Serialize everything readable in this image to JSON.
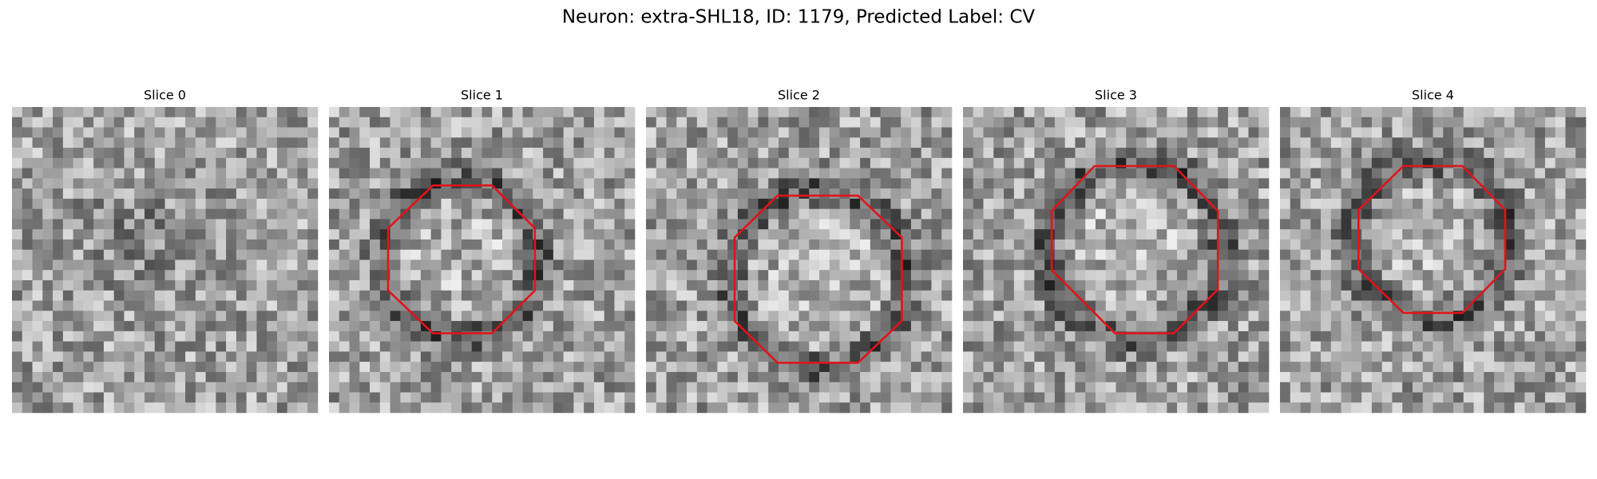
{
  "header": {
    "title": "Neuron: extra-SHL18, ID: 1179, Predicted Label: CV"
  },
  "panels": [
    {
      "title": "Slice 0"
    },
    {
      "title": "Slice 1"
    },
    {
      "title": "Slice 2"
    },
    {
      "title": "Slice 3"
    },
    {
      "title": "Slice 4"
    }
  ]
}
